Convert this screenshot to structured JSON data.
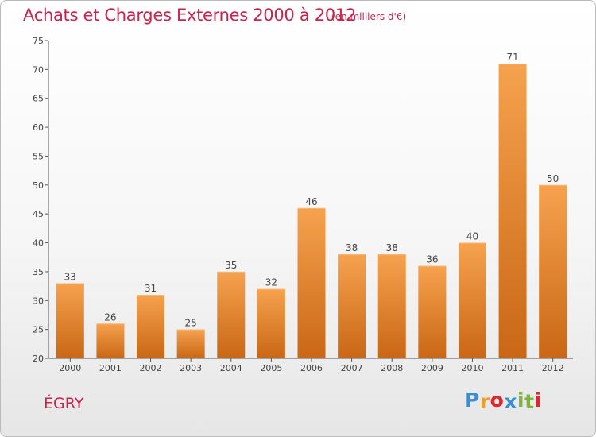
{
  "header": {
    "title": "Achats et Charges Externes 2000 à 2012",
    "subtitle": "(en milliers d'€)"
  },
  "footer": {
    "town": "ÉGRY",
    "logo_text": "Proxiti",
    "logo_colors": [
      "#3a8fd4",
      "#e8a22b",
      "#e0262a",
      "#3a8fd4",
      "#7cb342",
      "#7cb342",
      "#e0262a"
    ]
  },
  "chart_data": {
    "type": "bar",
    "categories": [
      "2000",
      "2001",
      "2002",
      "2003",
      "2004",
      "2005",
      "2006",
      "2007",
      "2008",
      "2009",
      "2010",
      "2011",
      "2012"
    ],
    "values": [
      33,
      26,
      31,
      25,
      35,
      32,
      46,
      38,
      38,
      36,
      40,
      71,
      50
    ],
    "title": "Achats et Charges Externes 2000 à 2012",
    "subtitle": "(en milliers d'€)",
    "ylim": [
      20,
      75
    ],
    "yticks": [
      20,
      25,
      30,
      35,
      40,
      45,
      50,
      55,
      60,
      65,
      70,
      75
    ],
    "grid": false,
    "legend": "none",
    "bar_color": "#f0892f"
  }
}
